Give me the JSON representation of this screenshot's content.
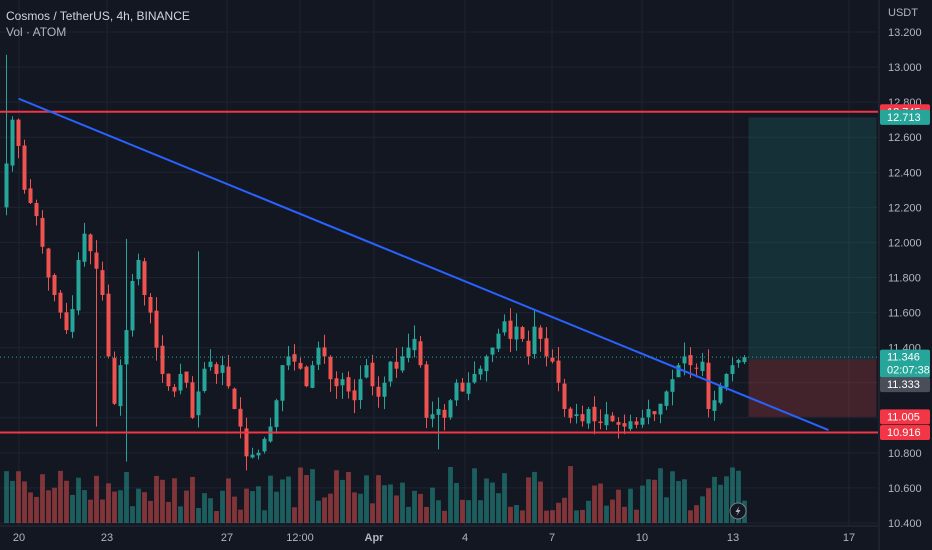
{
  "header": {
    "symbol": "Cosmos / TetherUS",
    "interval": "4h",
    "exchange": "BINANCE",
    "volume_label": "Vol · ATOM"
  },
  "colors": {
    "background": "#131722",
    "grid": "#1f2330",
    "up": "#26a69a",
    "down": "#ef5350",
    "trendline": "#2962ff",
    "level_line": "#f23645",
    "target_zone": "#26a69a",
    "stop_zone": "#ef5350"
  },
  "chart_data": {
    "type": "candlestick",
    "axis_currency": "USDT",
    "ylim": [
      10.38,
      13.26
    ],
    "y_ticks": [
      "13.200",
      "13.000",
      "12.800",
      "12.600",
      "12.400",
      "12.200",
      "12.000",
      "11.800",
      "11.600",
      "11.400",
      "11.200",
      "11.000",
      "10.800",
      "10.600",
      "10.400"
    ],
    "x_ticks": [
      "20",
      "23",
      "27",
      "12:00",
      "Apr",
      "4",
      "7",
      "10",
      "13",
      "17"
    ],
    "horizontal_levels": [
      12.745,
      10.916
    ],
    "price_tags": [
      {
        "value": "12.745",
        "kind": "level"
      },
      {
        "value": "12.713",
        "kind": "target"
      },
      {
        "value": "11.346",
        "kind": "last",
        "countdown": "02:07:38"
      },
      {
        "value": "11.333",
        "kind": "entry"
      },
      {
        "value": "11.005",
        "kind": "stop"
      },
      {
        "value": "10.916",
        "kind": "level"
      }
    ],
    "trendline": {
      "from_bar": 1,
      "from_price": 12.82,
      "to_bar": 137,
      "to_price": 10.93
    },
    "position": {
      "start_bar": 124,
      "end_bar": 145,
      "entry": 11.333,
      "target": 12.713,
      "stop": 11.005
    },
    "waypoints": [
      [
        0,
        12.45
      ],
      [
        1,
        12.7
      ],
      [
        2,
        12.55
      ],
      [
        3,
        12.3
      ],
      [
        5,
        12.15
      ],
      [
        7,
        11.8
      ],
      [
        9,
        11.6
      ],
      [
        10,
        11.5
      ],
      [
        11,
        11.62
      ],
      [
        12,
        11.9
      ],
      [
        13,
        12.05
      ],
      [
        14,
        11.95
      ],
      [
        15,
        11.85
      ],
      [
        16,
        11.7
      ],
      [
        17,
        11.35
      ],
      [
        18,
        11.08
      ],
      [
        19,
        11.3
      ],
      [
        20,
        11.5
      ],
      [
        21,
        11.78
      ],
      [
        22,
        11.9
      ],
      [
        23,
        11.7
      ],
      [
        24,
        11.6
      ],
      [
        25,
        11.4
      ],
      [
        26,
        11.25
      ],
      [
        27,
        11.18
      ],
      [
        28,
        11.15
      ],
      [
        29,
        11.25
      ],
      [
        30,
        11.2
      ],
      [
        31,
        11.0
      ],
      [
        32,
        11.15
      ],
      [
        33,
        11.28
      ],
      [
        34,
        11.32
      ],
      [
        35,
        11.25
      ],
      [
        36,
        11.3
      ],
      [
        37,
        11.18
      ],
      [
        38,
        11.05
      ],
      [
        39,
        10.95
      ],
      [
        40,
        10.78
      ],
      [
        42,
        10.8
      ],
      [
        43,
        10.88
      ],
      [
        44,
        10.95
      ],
      [
        45,
        11.1
      ],
      [
        46,
        11.3
      ],
      [
        47,
        11.35
      ],
      [
        48,
        11.32
      ],
      [
        49,
        11.28
      ],
      [
        50,
        11.18
      ],
      [
        51,
        11.3
      ],
      [
        52,
        11.4
      ],
      [
        53,
        11.35
      ],
      [
        54,
        11.22
      ],
      [
        55,
        11.18
      ],
      [
        56,
        11.22
      ],
      [
        57,
        11.15
      ],
      [
        58,
        11.1
      ],
      [
        59,
        11.22
      ],
      [
        60,
        11.3
      ],
      [
        61,
        11.18
      ],
      [
        62,
        11.12
      ],
      [
        63,
        11.2
      ],
      [
        64,
        11.32
      ],
      [
        65,
        11.28
      ],
      [
        66,
        11.35
      ],
      [
        67,
        11.4
      ],
      [
        68,
        11.45
      ],
      [
        69,
        11.3
      ],
      [
        70,
        11.0
      ],
      [
        71,
        11.02
      ],
      [
        72,
        11.05
      ],
      [
        73,
        11.0
      ],
      [
        74,
        11.1
      ],
      [
        75,
        11.2
      ],
      [
        76,
        11.15
      ],
      [
        77,
        11.2
      ],
      [
        78,
        11.25
      ],
      [
        79,
        11.28
      ],
      [
        80,
        11.35
      ],
      [
        81,
        11.4
      ],
      [
        82,
        11.48
      ],
      [
        83,
        11.55
      ],
      [
        84,
        11.45
      ],
      [
        85,
        11.52
      ],
      [
        86,
        11.45
      ],
      [
        87,
        11.35
      ],
      [
        88,
        11.52
      ],
      [
        89,
        11.45
      ],
      [
        90,
        11.35
      ],
      [
        91,
        11.32
      ],
      [
        92,
        11.2
      ],
      [
        93,
        11.05
      ],
      [
        94,
        11.0
      ],
      [
        95,
        11.02
      ],
      [
        96,
        10.98
      ],
      [
        97,
        11.05
      ],
      [
        98,
        10.98
      ],
      [
        99,
        10.97
      ],
      [
        100,
        11.02
      ],
      [
        101,
        10.98
      ],
      [
        102,
        10.96
      ],
      [
        103,
        10.95
      ],
      [
        104,
        10.98
      ],
      [
        105,
        10.96
      ],
      [
        106,
        11.0
      ],
      [
        107,
        11.05
      ],
      [
        108,
        11.02
      ],
      [
        109,
        11.08
      ],
      [
        110,
        11.15
      ],
      [
        111,
        11.22
      ],
      [
        112,
        11.3
      ],
      [
        113,
        11.35
      ],
      [
        114,
        11.3
      ],
      [
        115,
        11.28
      ],
      [
        116,
        11.32
      ],
      [
        117,
        11.05
      ],
      [
        118,
        11.1
      ],
      [
        119,
        11.18
      ],
      [
        120,
        11.25
      ],
      [
        121,
        11.3
      ],
      [
        122,
        11.33
      ],
      [
        123,
        11.346
      ]
    ]
  }
}
